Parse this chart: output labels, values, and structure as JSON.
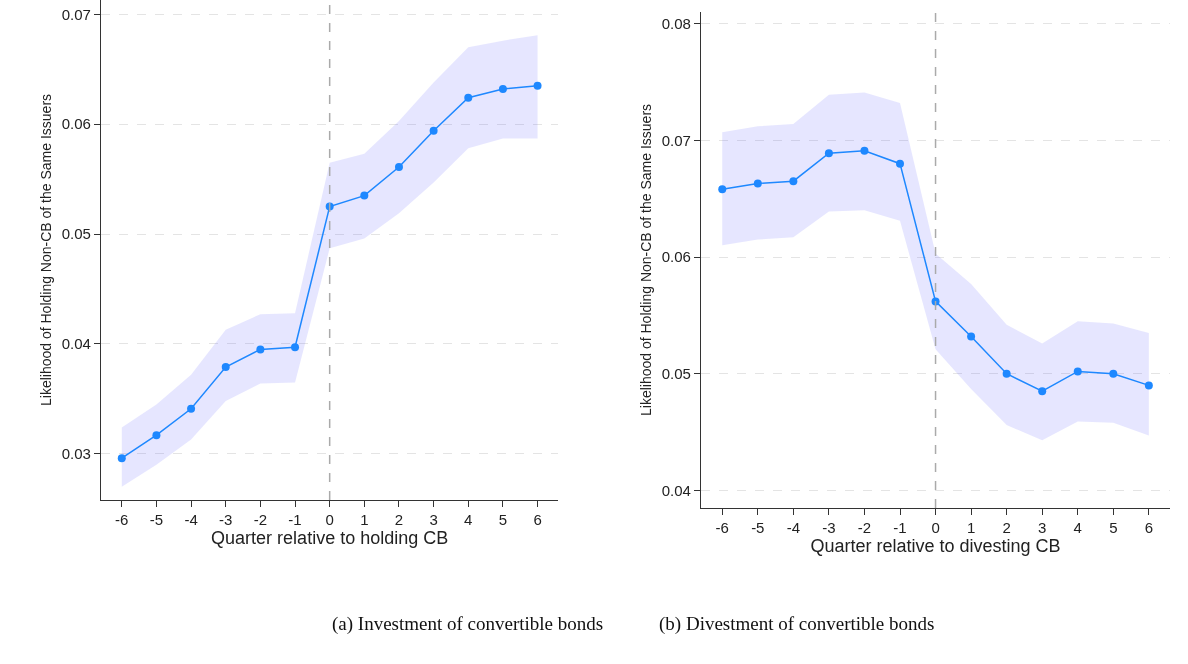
{
  "chart_data": [
    {
      "type": "line",
      "xlabel": "Quarter relative to holding CB",
      "ylabel": "Likelihood of Holding Non-CB of the Same Issuers",
      "x": [
        -6,
        -5,
        -4,
        -3,
        -2,
        -1,
        0,
        1,
        2,
        3,
        4,
        5,
        6
      ],
      "xlim": [
        -6.6,
        6.6
      ],
      "xticks": [
        -6,
        -5,
        -4,
        -3,
        -2,
        -1,
        0,
        1,
        2,
        3,
        4,
        5,
        6
      ],
      "ylim": [
        0.0258,
        0.0713
      ],
      "yticks": [
        0.03,
        0.04,
        0.05,
        0.06,
        0.07
      ],
      "grid": "y",
      "marker": "circle",
      "line_style": "solid",
      "series": [
        {
          "color": "#1e88ff",
          "values": [
            0.0296,
            0.0317,
            0.0341,
            0.0379,
            0.0395,
            0.0397,
            0.0525,
            0.0535,
            0.0561,
            0.0594,
            0.0624,
            0.0632,
            0.0635
          ],
          "lower": [
            0.027,
            0.029,
            0.0313,
            0.0348,
            0.0364,
            0.0365,
            0.0487,
            0.0496,
            0.0519,
            0.0547,
            0.0578,
            0.0587,
            0.0587
          ],
          "upper": [
            0.0324,
            0.0345,
            0.0372,
            0.0413,
            0.0427,
            0.0428,
            0.0565,
            0.0573,
            0.0603,
            0.0638,
            0.067,
            0.0676,
            0.0681
          ]
        }
      ],
      "ref_lines": [
        {
          "axis": "x",
          "value": 0,
          "color": "#aaaaaa",
          "line_style": "dashed"
        }
      ],
      "annotations": [
        "(a) Investment of convertible bonds"
      ]
    },
    {
      "type": "line",
      "xlabel": "Quarter relative to divesting CB",
      "ylabel": "Likelihood of Holding Non-CB of the Same Issuers",
      "x": [
        -6,
        -5,
        -4,
        -3,
        -2,
        -1,
        0,
        1,
        2,
        3,
        4,
        5,
        6
      ],
      "xlim": [
        -6.6,
        6.6
      ],
      "xticks": [
        -6,
        -5,
        -4,
        -3,
        -2,
        -1,
        0,
        1,
        2,
        3,
        4,
        5,
        6
      ],
      "ylim": [
        0.0385,
        0.081
      ],
      "yticks": [
        0.04,
        0.05,
        0.06,
        0.07,
        0.08
      ],
      "grid": "y",
      "marker": "circle",
      "line_style": "solid",
      "series": [
        {
          "color": "#1e88ff",
          "values": [
            0.0658,
            0.0663,
            0.0665,
            0.0689,
            0.0691,
            0.068,
            0.0562,
            0.0532,
            0.05,
            0.0485,
            0.0502,
            0.05,
            0.049
          ],
          "lower": [
            0.061,
            0.0615,
            0.0617,
            0.0639,
            0.064,
            0.0631,
            0.0521,
            0.0487,
            0.0456,
            0.0443,
            0.0459,
            0.0458,
            0.0447
          ],
          "upper": [
            0.0707,
            0.0712,
            0.0714,
            0.0739,
            0.0741,
            0.0732,
            0.0603,
            0.0577,
            0.0542,
            0.0526,
            0.0545,
            0.0543,
            0.0535
          ]
        }
      ],
      "ref_lines": [
        {
          "axis": "x",
          "value": 0,
          "color": "#aaaaaa",
          "line_style": "dashed"
        }
      ],
      "annotations": [
        "(b) Divestment of convertible bonds"
      ]
    }
  ]
}
